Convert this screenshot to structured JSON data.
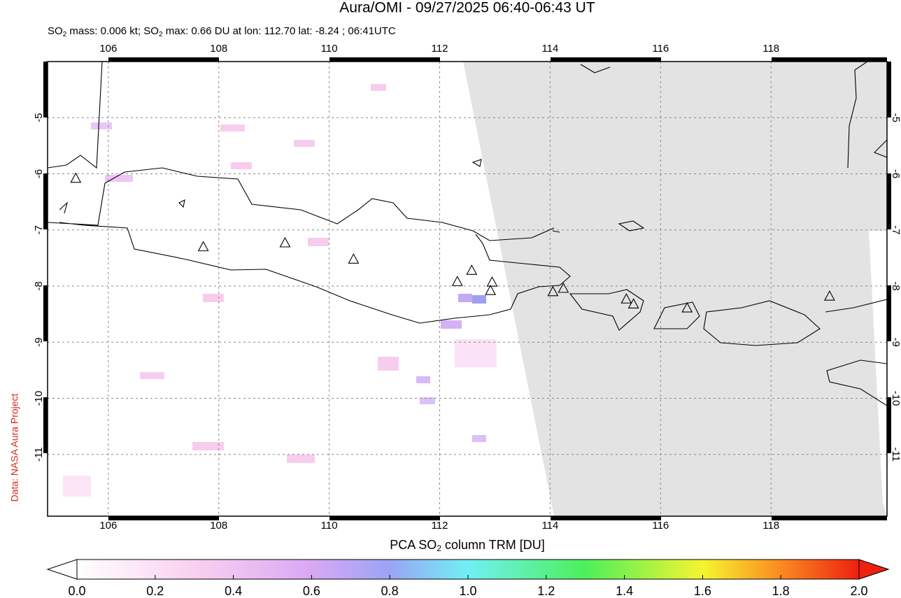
{
  "title": "Aura/OMI - 09/27/2025 06:40-06:43 UT",
  "subtitle": [
    "SO",
    "2",
    " mass: 0.006 kt; SO",
    "2",
    " max: 0.66 DU at lon: 112.70 lat: -8.24 ; 06:41UTC"
  ],
  "credit": "Data: NASA Aura Project",
  "map": {
    "lonlim": [
      104.9,
      120.1
    ],
    "latlim": [
      -4.0,
      -12.1
    ],
    "lonticks": [
      106,
      108,
      110,
      112,
      114,
      116,
      118
    ],
    "latticks": [
      -5,
      -6,
      -7,
      -8,
      -9,
      -10,
      -11
    ],
    "grid": true,
    "no_data_color": "#e3e3e3",
    "volcanoes": {
      "lon": [
        105.41,
        107.72,
        109.2,
        110.44,
        112.32,
        112.58,
        112.95,
        112.92,
        114.05,
        114.24,
        115.38,
        115.51,
        116.48,
        119.06
      ],
      "lat": [
        -6.09,
        -7.31,
        -7.24,
        -7.53,
        -7.93,
        -7.73,
        -7.94,
        -8.09,
        -8.11,
        -8.05,
        -8.24,
        -8.33,
        -8.4,
        -8.19
      ]
    }
  },
  "colorbar": {
    "label": [
      "PCA SO",
      "2",
      " column TRM [DU]"
    ],
    "lim": [
      0,
      2
    ],
    "ticks": [
      {
        "value": 0,
        "label": "0.0"
      },
      {
        "value": 0.2,
        "label": "0.2"
      },
      {
        "value": 0.4,
        "label": "0.4"
      },
      {
        "value": 0.6,
        "label": "0.6"
      },
      {
        "value": 0.8,
        "label": "0.8"
      },
      {
        "value": 1,
        "label": "1.0"
      },
      {
        "value": 1.2,
        "label": "1.2"
      },
      {
        "value": 1.4,
        "label": "1.4"
      },
      {
        "value": 1.6,
        "label": "1.6"
      },
      {
        "value": 1.8,
        "label": "1.8"
      },
      {
        "value": 2,
        "label": "2.0"
      }
    ]
  }
}
